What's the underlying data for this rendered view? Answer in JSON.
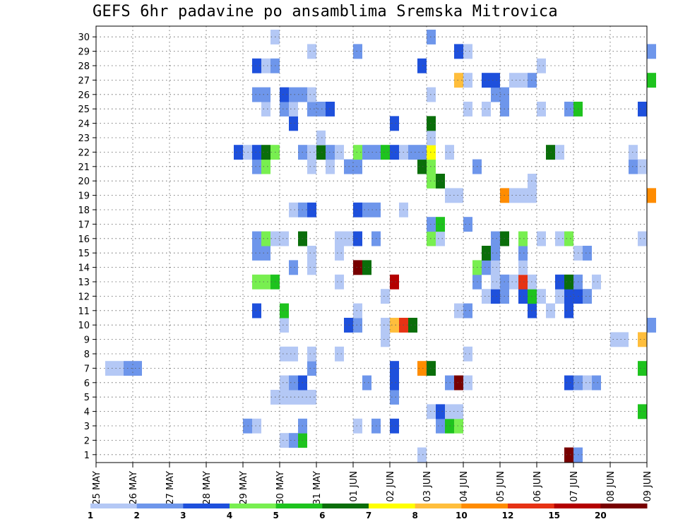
{
  "chart_data": {
    "type": "heatmap",
    "title": "GEFS 6hr padavine po ansamblima Sremska Mitrovica",
    "xlabel": "",
    "ylabel": "",
    "x_dates": [
      "25 MAY",
      "26 MAY",
      "27 MAY",
      "28 MAY",
      "29 MAY",
      "30 MAY",
      "31 MAY",
      "01 JUN",
      "02 JUN",
      "03 JUN",
      "04 JUN",
      "05 JUN",
      "06 JUN",
      "07 JUN",
      "08 JUN",
      "09 JUN"
    ],
    "x_steps_per_day": 4,
    "members": [
      "1",
      "2",
      "3",
      "4",
      "5",
      "6",
      "7",
      "8",
      "9",
      "10",
      "11",
      "12",
      "13",
      "14",
      "15",
      "16",
      "17",
      "18",
      "19",
      "20",
      "21",
      "22",
      "23",
      "24",
      "25",
      "26",
      "27",
      "28",
      "29",
      "30"
    ],
    "grid": true,
    "colorbar": {
      "labels": [
        "1",
        "2",
        "3",
        "4",
        "5",
        "6",
        "7",
        "8",
        "10",
        "12",
        "15",
        "20"
      ],
      "colors": [
        "#b4c8f5",
        "#6e96eb",
        "#1e50dc",
        "#78ef50",
        "#1ec31e",
        "#0a6e0a",
        "#ffff00",
        "#ffbe3c",
        "#ff8c00",
        "#e63214",
        "#b40000",
        "#780000"
      ]
    },
    "cells_note": "[step, member, bin]",
    "cells": [
      [
        20,
        1,
        0
      ],
      [
        21,
        1,
        1
      ],
      [
        22,
        1,
        4
      ],
      [
        35,
        0,
        0
      ],
      [
        51,
        0,
        11
      ],
      [
        52,
        0,
        1
      ],
      [
        67,
        0,
        0
      ],
      [
        74,
        0,
        0
      ],
      [
        75,
        0,
        0
      ],
      [
        76,
        0,
        0
      ],
      [
        77,
        0,
        7
      ],
      [
        75,
        1,
        4
      ],
      [
        76,
        1,
        4
      ],
      [
        16,
        2,
        1
      ],
      [
        17,
        2,
        0
      ],
      [
        22,
        2,
        1
      ],
      [
        28,
        2,
        0
      ],
      [
        30,
        2,
        1
      ],
      [
        32,
        2,
        2
      ],
      [
        37,
        2,
        1
      ],
      [
        38,
        2,
        4
      ],
      [
        39,
        2,
        3
      ],
      [
        36,
        3,
        0
      ],
      [
        37,
        3,
        2
      ],
      [
        38,
        3,
        0
      ],
      [
        39,
        3,
        0
      ],
      [
        59,
        3,
        4
      ],
      [
        19,
        4,
        0
      ],
      [
        20,
        4,
        0
      ],
      [
        21,
        4,
        0
      ],
      [
        22,
        4,
        0
      ],
      [
        23,
        4,
        0
      ],
      [
        32,
        4,
        1
      ],
      [
        20,
        5,
        0
      ],
      [
        21,
        5,
        1
      ],
      [
        22,
        5,
        2
      ],
      [
        29,
        5,
        1
      ],
      [
        32,
        5,
        2
      ],
      [
        38,
        5,
        1
      ],
      [
        39,
        5,
        11
      ],
      [
        40,
        5,
        0
      ],
      [
        51,
        5,
        2
      ],
      [
        52,
        5,
        1
      ],
      [
        53,
        5,
        0
      ],
      [
        54,
        5,
        1
      ],
      [
        1,
        6,
        0
      ],
      [
        2,
        6,
        0
      ],
      [
        3,
        6,
        1
      ],
      [
        4,
        6,
        1
      ],
      [
        23,
        6,
        1
      ],
      [
        32,
        6,
        2
      ],
      [
        35,
        6,
        8
      ],
      [
        36,
        6,
        5
      ],
      [
        59,
        6,
        4
      ],
      [
        20,
        7,
        0
      ],
      [
        21,
        7,
        0
      ],
      [
        23,
        7,
        0
      ],
      [
        26,
        7,
        0
      ],
      [
        40,
        7,
        0
      ],
      [
        31,
        8,
        0
      ],
      [
        56,
        8,
        0
      ],
      [
        57,
        8,
        0
      ],
      [
        59,
        8,
        7
      ],
      [
        20,
        9,
        0
      ],
      [
        27,
        9,
        2
      ],
      [
        28,
        9,
        1
      ],
      [
        31,
        9,
        0
      ],
      [
        32,
        9,
        7
      ],
      [
        33,
        9,
        9
      ],
      [
        34,
        9,
        5
      ],
      [
        60,
        9,
        1
      ],
      [
        17,
        10,
        2
      ],
      [
        20,
        10,
        4
      ],
      [
        28,
        10,
        0
      ],
      [
        39,
        10,
        0
      ],
      [
        40,
        10,
        1
      ],
      [
        47,
        10,
        2
      ],
      [
        49,
        10,
        0
      ],
      [
        51,
        10,
        2
      ],
      [
        31,
        11,
        0
      ],
      [
        42,
        11,
        0
      ],
      [
        43,
        11,
        2
      ],
      [
        44,
        11,
        1
      ],
      [
        46,
        11,
        2
      ],
      [
        47,
        11,
        4
      ],
      [
        48,
        11,
        0
      ],
      [
        50,
        11,
        0
      ],
      [
        51,
        11,
        2
      ],
      [
        52,
        11,
        2
      ],
      [
        53,
        11,
        1
      ],
      [
        17,
        12,
        3
      ],
      [
        18,
        12,
        3
      ],
      [
        19,
        12,
        4
      ],
      [
        26,
        12,
        0
      ],
      [
        32,
        12,
        10
      ],
      [
        41,
        12,
        1
      ],
      [
        43,
        12,
        0
      ],
      [
        44,
        12,
        1
      ],
      [
        45,
        12,
        0
      ],
      [
        46,
        12,
        9
      ],
      [
        47,
        12,
        0
      ],
      [
        50,
        12,
        2
      ],
      [
        51,
        12,
        5
      ],
      [
        52,
        12,
        1
      ],
      [
        54,
        12,
        0
      ],
      [
        21,
        13,
        1
      ],
      [
        23,
        13,
        0
      ],
      [
        28,
        13,
        11
      ],
      [
        29,
        13,
        5
      ],
      [
        41,
        13,
        3
      ],
      [
        42,
        13,
        1
      ],
      [
        43,
        13,
        0
      ],
      [
        46,
        13,
        0
      ],
      [
        17,
        14,
        1
      ],
      [
        18,
        14,
        1
      ],
      [
        23,
        14,
        0
      ],
      [
        26,
        14,
        0
      ],
      [
        42,
        14,
        5
      ],
      [
        43,
        14,
        1
      ],
      [
        46,
        14,
        1
      ],
      [
        52,
        14,
        0
      ],
      [
        53,
        14,
        1
      ],
      [
        17,
        15,
        1
      ],
      [
        18,
        15,
        3
      ],
      [
        19,
        15,
        0
      ],
      [
        20,
        15,
        0
      ],
      [
        22,
        15,
        5
      ],
      [
        26,
        15,
        0
      ],
      [
        27,
        15,
        0
      ],
      [
        28,
        15,
        2
      ],
      [
        30,
        15,
        1
      ],
      [
        36,
        15,
        3
      ],
      [
        37,
        15,
        0
      ],
      [
        43,
        15,
        1
      ],
      [
        44,
        15,
        5
      ],
      [
        46,
        15,
        3
      ],
      [
        48,
        15,
        0
      ],
      [
        50,
        15,
        0
      ],
      [
        51,
        15,
        3
      ],
      [
        59,
        15,
        0
      ],
      [
        36,
        16,
        1
      ],
      [
        37,
        16,
        4
      ],
      [
        40,
        16,
        1
      ],
      [
        21,
        17,
        0
      ],
      [
        22,
        17,
        1
      ],
      [
        23,
        17,
        2
      ],
      [
        28,
        17,
        2
      ],
      [
        29,
        17,
        1
      ],
      [
        30,
        17,
        1
      ],
      [
        33,
        17,
        0
      ],
      [
        38,
        18,
        0
      ],
      [
        39,
        18,
        0
      ],
      [
        44,
        18,
        8
      ],
      [
        45,
        18,
        0
      ],
      [
        46,
        18,
        0
      ],
      [
        47,
        18,
        0
      ],
      [
        60,
        18,
        8
      ],
      [
        36,
        19,
        3
      ],
      [
        37,
        19,
        5
      ],
      [
        47,
        19,
        0
      ],
      [
        17,
        20,
        1
      ],
      [
        18,
        20,
        3
      ],
      [
        23,
        20,
        0
      ],
      [
        25,
        20,
        0
      ],
      [
        27,
        20,
        1
      ],
      [
        28,
        20,
        1
      ],
      [
        35,
        20,
        5
      ],
      [
        36,
        20,
        3
      ],
      [
        41,
        20,
        1
      ],
      [
        58,
        20,
        1
      ],
      [
        59,
        20,
        0
      ],
      [
        15,
        21,
        2
      ],
      [
        16,
        21,
        0
      ],
      [
        17,
        21,
        2
      ],
      [
        18,
        21,
        5
      ],
      [
        19,
        21,
        3
      ],
      [
        22,
        21,
        1
      ],
      [
        23,
        21,
        0
      ],
      [
        24,
        21,
        5
      ],
      [
        25,
        21,
        1
      ],
      [
        26,
        21,
        0
      ],
      [
        28,
        21,
        3
      ],
      [
        29,
        21,
        1
      ],
      [
        30,
        21,
        1
      ],
      [
        31,
        21,
        4
      ],
      [
        32,
        21,
        2
      ],
      [
        33,
        21,
        0
      ],
      [
        34,
        21,
        1
      ],
      [
        35,
        21,
        1
      ],
      [
        36,
        21,
        6
      ],
      [
        38,
        21,
        0
      ],
      [
        49,
        21,
        5
      ],
      [
        50,
        21,
        0
      ],
      [
        58,
        21,
        0
      ],
      [
        24,
        22,
        0
      ],
      [
        36,
        22,
        0
      ],
      [
        21,
        23,
        2
      ],
      [
        32,
        23,
        2
      ],
      [
        36,
        23,
        5
      ],
      [
        18,
        24,
        0
      ],
      [
        20,
        24,
        1
      ],
      [
        21,
        24,
        0
      ],
      [
        23,
        24,
        1
      ],
      [
        24,
        24,
        1
      ],
      [
        25,
        24,
        2
      ],
      [
        40,
        24,
        0
      ],
      [
        42,
        24,
        0
      ],
      [
        44,
        24,
        1
      ],
      [
        48,
        24,
        0
      ],
      [
        51,
        24,
        1
      ],
      [
        52,
        24,
        4
      ],
      [
        59,
        24,
        2
      ],
      [
        17,
        25,
        1
      ],
      [
        18,
        25,
        1
      ],
      [
        20,
        25,
        2
      ],
      [
        21,
        25,
        1
      ],
      [
        22,
        25,
        1
      ],
      [
        23,
        25,
        0
      ],
      [
        36,
        25,
        0
      ],
      [
        43,
        25,
        1
      ],
      [
        44,
        25,
        1
      ],
      [
        39,
        26,
        7
      ],
      [
        40,
        26,
        0
      ],
      [
        42,
        26,
        2
      ],
      [
        43,
        26,
        2
      ],
      [
        45,
        26,
        0
      ],
      [
        46,
        26,
        0
      ],
      [
        47,
        26,
        1
      ],
      [
        60,
        26,
        4
      ],
      [
        17,
        27,
        2
      ],
      [
        18,
        27,
        0
      ],
      [
        19,
        27,
        1
      ],
      [
        35,
        27,
        2
      ],
      [
        48,
        27,
        0
      ],
      [
        23,
        28,
        0
      ],
      [
        28,
        28,
        1
      ],
      [
        39,
        28,
        2
      ],
      [
        40,
        28,
        0
      ],
      [
        60,
        28,
        1
      ],
      [
        19,
        29,
        0
      ],
      [
        36,
        29,
        1
      ]
    ]
  }
}
